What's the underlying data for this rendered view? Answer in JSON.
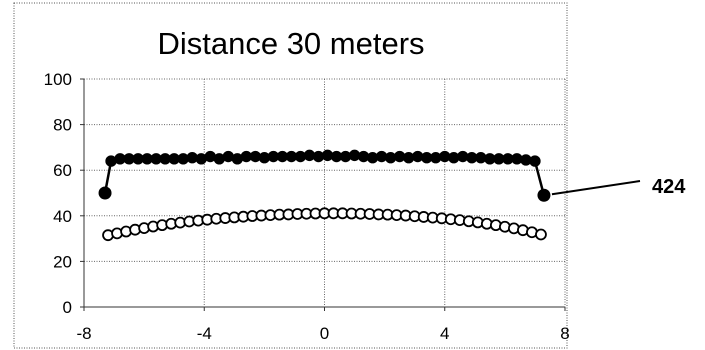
{
  "chart_data": {
    "type": "scatter",
    "title": "Distance 30 meters",
    "xlabel": "",
    "ylabel": "",
    "xlim": [
      -8,
      8
    ],
    "ylim": [
      0,
      100
    ],
    "x_ticks": [
      -8,
      -4,
      0,
      4,
      8
    ],
    "y_ticks": [
      0,
      20,
      40,
      60,
      80,
      100
    ],
    "grid": true,
    "legend": "none",
    "series": [
      {
        "marker": "filled-circle",
        "connected": true,
        "color": "#000000",
        "points": [
          [
            -7.3,
            50
          ],
          [
            -7.1,
            64
          ],
          [
            -6.8,
            65
          ],
          [
            -6.5,
            65
          ],
          [
            -6.2,
            65
          ],
          [
            -5.9,
            65
          ],
          [
            -5.6,
            65
          ],
          [
            -5.3,
            65
          ],
          [
            -5.0,
            65
          ],
          [
            -4.7,
            65
          ],
          [
            -4.4,
            65.5
          ],
          [
            -4.1,
            65
          ],
          [
            -3.8,
            66
          ],
          [
            -3.5,
            65
          ],
          [
            -3.2,
            66
          ],
          [
            -2.9,
            65
          ],
          [
            -2.6,
            66
          ],
          [
            -2.3,
            66
          ],
          [
            -2.0,
            65.5
          ],
          [
            -1.7,
            66
          ],
          [
            -1.4,
            66
          ],
          [
            -1.1,
            66
          ],
          [
            -0.8,
            66
          ],
          [
            -0.5,
            66.5
          ],
          [
            -0.2,
            66
          ],
          [
            0.1,
            66.5
          ],
          [
            0.4,
            66
          ],
          [
            0.7,
            66
          ],
          [
            1.0,
            66.5
          ],
          [
            1.3,
            66
          ],
          [
            1.6,
            65.5
          ],
          [
            1.9,
            66
          ],
          [
            2.2,
            65.5
          ],
          [
            2.5,
            66
          ],
          [
            2.8,
            65.5
          ],
          [
            3.1,
            66
          ],
          [
            3.4,
            65.5
          ],
          [
            3.7,
            65.5
          ],
          [
            4.0,
            66
          ],
          [
            4.3,
            65.5
          ],
          [
            4.6,
            66
          ],
          [
            4.9,
            65.5
          ],
          [
            5.2,
            65.5
          ],
          [
            5.5,
            65
          ],
          [
            5.8,
            65
          ],
          [
            6.1,
            65
          ],
          [
            6.4,
            65
          ],
          [
            6.7,
            64.5
          ],
          [
            7.0,
            64
          ],
          [
            7.3,
            49
          ]
        ]
      },
      {
        "marker": "open-circle",
        "connected": false,
        "color": "#000000",
        "points": [
          [
            -7.2,
            31.5
          ],
          [
            -6.9,
            32.3
          ],
          [
            -6.6,
            33.1
          ],
          [
            -6.3,
            33.9
          ],
          [
            -6.0,
            34.6
          ],
          [
            -5.7,
            35.3
          ],
          [
            -5.4,
            35.9
          ],
          [
            -5.1,
            36.5
          ],
          [
            -4.8,
            37.0
          ],
          [
            -4.5,
            37.5
          ],
          [
            -4.2,
            37.9
          ],
          [
            -3.9,
            38.3
          ],
          [
            -3.6,
            38.7
          ],
          [
            -3.3,
            39.0
          ],
          [
            -3.0,
            39.3
          ],
          [
            -2.7,
            39.6
          ],
          [
            -2.4,
            39.9
          ],
          [
            -2.1,
            40.1
          ],
          [
            -1.8,
            40.3
          ],
          [
            -1.5,
            40.5
          ],
          [
            -1.2,
            40.6
          ],
          [
            -0.9,
            40.8
          ],
          [
            -0.6,
            40.9
          ],
          [
            -0.3,
            41.0
          ],
          [
            0.0,
            41.1
          ],
          [
            0.3,
            41.1
          ],
          [
            0.6,
            41.1
          ],
          [
            0.9,
            41.0
          ],
          [
            1.2,
            40.9
          ],
          [
            1.5,
            40.8
          ],
          [
            1.8,
            40.6
          ],
          [
            2.1,
            40.5
          ],
          [
            2.4,
            40.3
          ],
          [
            2.7,
            40.1
          ],
          [
            3.0,
            39.8
          ],
          [
            3.3,
            39.5
          ],
          [
            3.6,
            39.2
          ],
          [
            3.9,
            38.9
          ],
          [
            4.2,
            38.5
          ],
          [
            4.5,
            38.1
          ],
          [
            4.8,
            37.6
          ],
          [
            5.1,
            37.1
          ],
          [
            5.4,
            36.5
          ],
          [
            5.7,
            35.9
          ],
          [
            6.0,
            35.2
          ],
          [
            6.3,
            34.5
          ],
          [
            6.6,
            33.7
          ],
          [
            6.9,
            32.8
          ],
          [
            7.2,
            31.8
          ]
        ]
      }
    ],
    "annotations": [
      {
        "text": "424",
        "target": [
          7.3,
          49
        ]
      }
    ]
  }
}
